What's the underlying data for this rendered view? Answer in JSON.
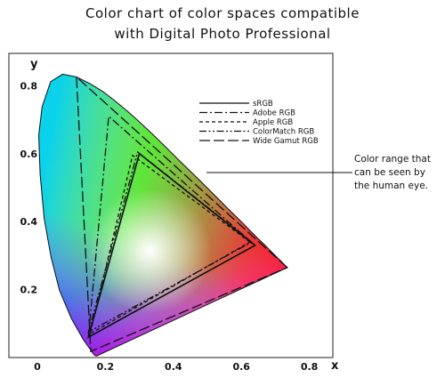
{
  "chart_data": {
    "type": "line",
    "title_lines": [
      "Color chart of color spaces compatible",
      "with Digital Photo Professional"
    ],
    "xlabel": "x",
    "ylabel": "y",
    "xlim": [
      0,
      0.86
    ],
    "ylim": [
      0,
      0.9
    ],
    "x_ticks": [
      "0",
      "0.2",
      "0.4",
      "0.6",
      "0.8"
    ],
    "y_ticks": [
      "0.2",
      "0.4",
      "0.6",
      "0.8"
    ],
    "grid": false,
    "legend_position": "top-right",
    "spectral_locus": [
      [
        0.175,
        0.005
      ],
      [
        0.172,
        0.005
      ],
      [
        0.166,
        0.009
      ],
      [
        0.155,
        0.025
      ],
      [
        0.136,
        0.051
      ],
      [
        0.1,
        0.115
      ],
      [
        0.065,
        0.198
      ],
      [
        0.04,
        0.296
      ],
      [
        0.02,
        0.41
      ],
      [
        0.008,
        0.539
      ],
      [
        0.004,
        0.654
      ],
      [
        0.014,
        0.738
      ],
      [
        0.039,
        0.812
      ],
      [
        0.074,
        0.834
      ],
      [
        0.115,
        0.826
      ],
      [
        0.155,
        0.806
      ],
      [
        0.194,
        0.782
      ],
      [
        0.23,
        0.754
      ],
      [
        0.266,
        0.724
      ],
      [
        0.302,
        0.692
      ],
      [
        0.337,
        0.659
      ],
      [
        0.373,
        0.624
      ],
      [
        0.408,
        0.589
      ],
      [
        0.444,
        0.554
      ],
      [
        0.479,
        0.52
      ],
      [
        0.512,
        0.487
      ],
      [
        0.545,
        0.454
      ],
      [
        0.575,
        0.424
      ],
      [
        0.603,
        0.397
      ],
      [
        0.627,
        0.372
      ],
      [
        0.648,
        0.351
      ],
      [
        0.666,
        0.334
      ],
      [
        0.68,
        0.32
      ],
      [
        0.692,
        0.308
      ],
      [
        0.701,
        0.299
      ],
      [
        0.708,
        0.292
      ],
      [
        0.713,
        0.287
      ],
      [
        0.735,
        0.265
      ]
    ],
    "series": [
      {
        "name": "sRGB",
        "dash": "solid",
        "points": [
          [
            0.64,
            0.33
          ],
          [
            0.3,
            0.6
          ],
          [
            0.15,
            0.06
          ]
        ]
      },
      {
        "name": "Adobe RGB",
        "dash": "dashdot",
        "points": [
          [
            0.64,
            0.33
          ],
          [
            0.21,
            0.71
          ],
          [
            0.15,
            0.06
          ]
        ]
      },
      {
        "name": "Apple RGB",
        "dash": "shortdash",
        "points": [
          [
            0.625,
            0.34
          ],
          [
            0.28,
            0.595
          ],
          [
            0.155,
            0.07
          ]
        ]
      },
      {
        "name": "ColorMatch RGB",
        "dash": "dashdotdot",
        "points": [
          [
            0.63,
            0.34
          ],
          [
            0.295,
            0.605
          ],
          [
            0.15,
            0.075
          ]
        ]
      },
      {
        "name": "Wide Gamut RGB",
        "dash": "longdash",
        "points": [
          [
            0.735,
            0.265
          ],
          [
            0.115,
            0.826
          ],
          [
            0.157,
            0.018
          ]
        ]
      }
    ],
    "annotation_lines": [
      "Color range that",
      "can be seen by",
      "the human eye."
    ]
  }
}
